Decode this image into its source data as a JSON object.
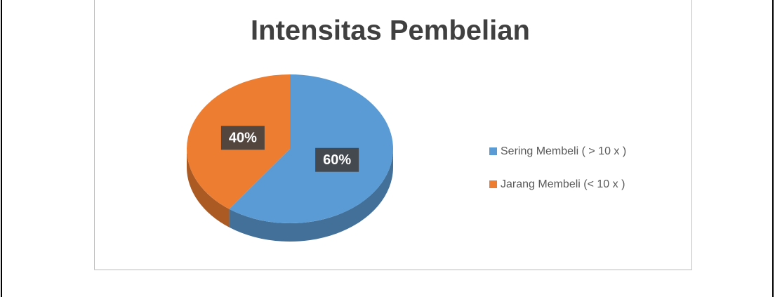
{
  "chart_data": {
    "type": "pie",
    "title": "Intensitas Pembelian",
    "categories": [
      "Sering Membeli ( > 10 x )",
      "Jarang Membeli (< 10 x )"
    ],
    "values": [
      60,
      40
    ],
    "value_labels": [
      "60%",
      "40%"
    ],
    "colors": [
      "#5b9bd5",
      "#ed7d31"
    ],
    "legend": "right"
  }
}
